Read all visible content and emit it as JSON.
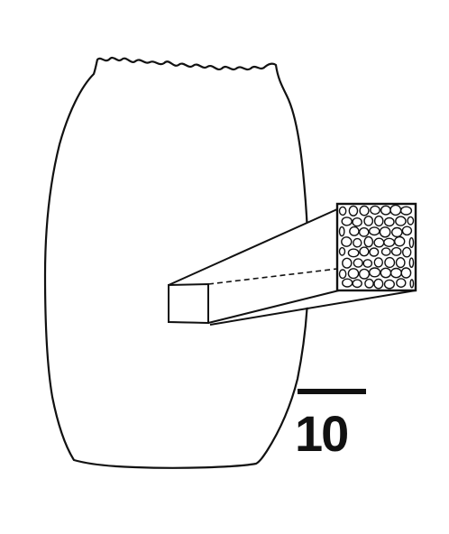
{
  "figure": {
    "scale_bar": {
      "label": "10"
    },
    "colors": {
      "stroke": "#111111",
      "background": "#ffffff",
      "cell_fill": "#ffffff"
    },
    "icons": [
      "sponge-body-outline",
      "cross-section-prism",
      "cell-texture",
      "scale-bar"
    ]
  }
}
